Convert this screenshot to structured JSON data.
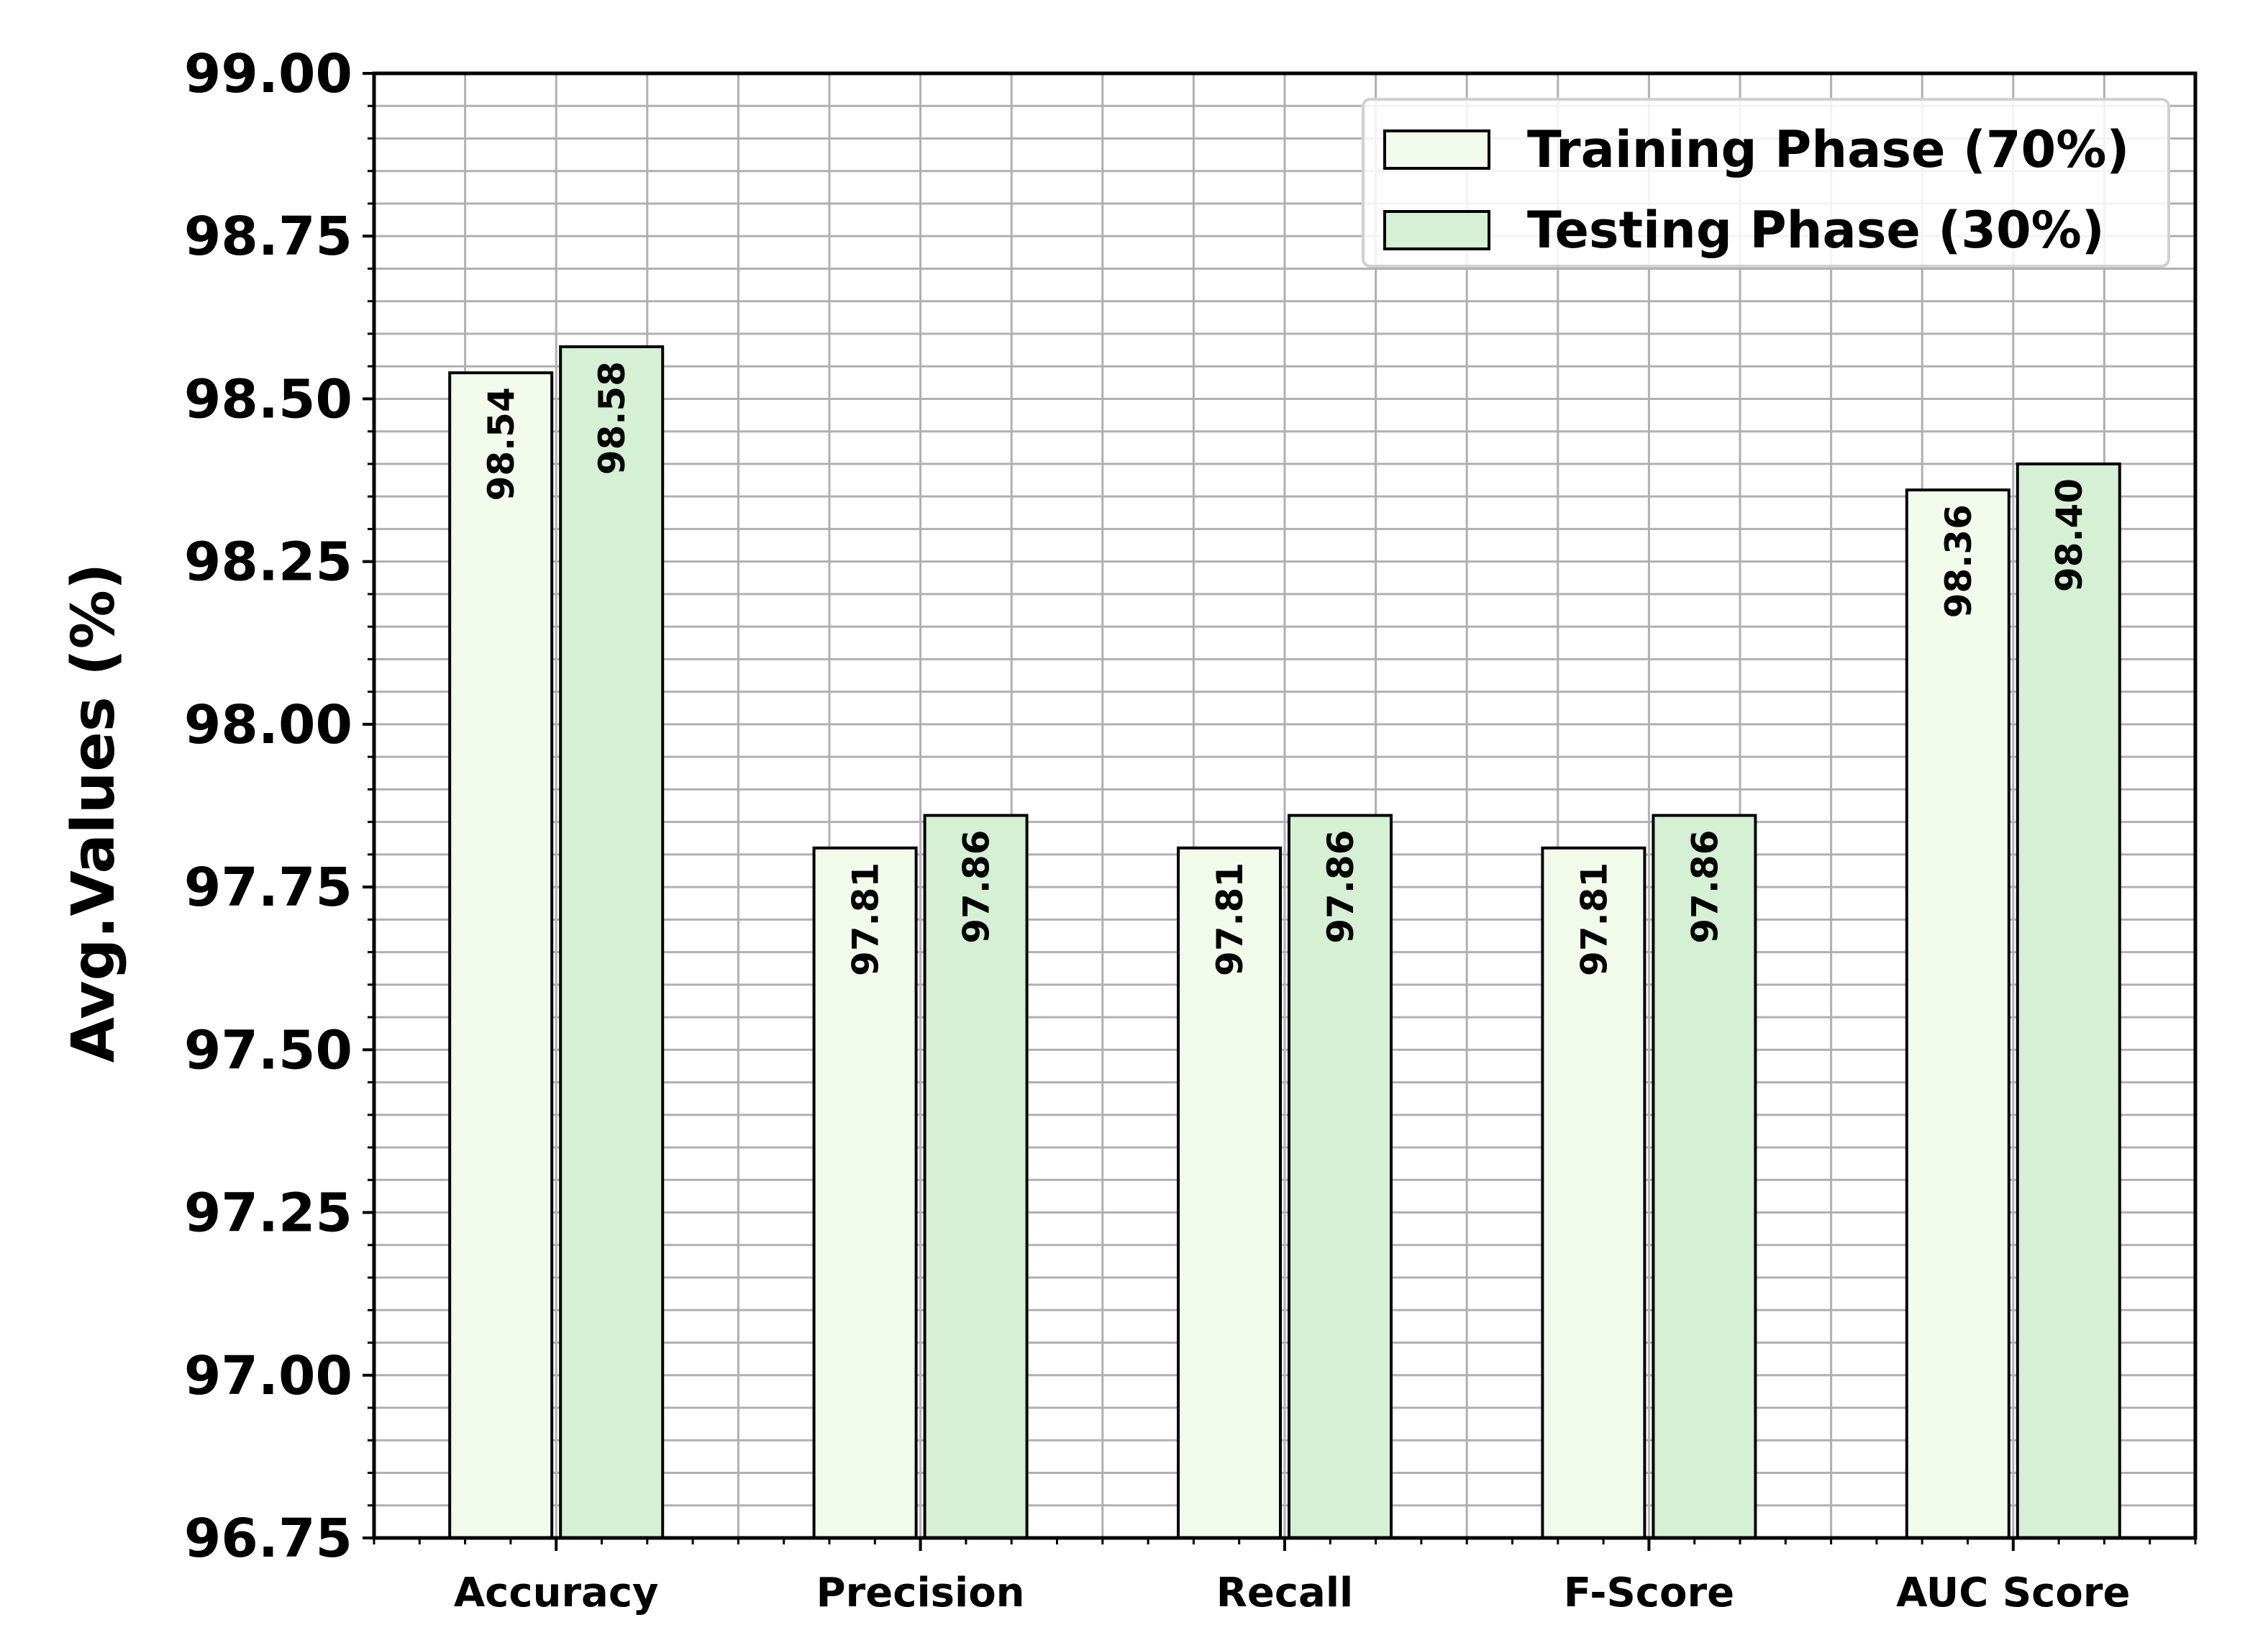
{
  "chart_data": {
    "type": "bar",
    "title": "",
    "xlabel": "",
    "ylabel": "Avg.Values (%)",
    "categories": [
      "Accuracy",
      "Precision",
      "Recall",
      "F-Score",
      "AUC Score"
    ],
    "series": [
      {
        "name": "Training Phase (70%)",
        "values": [
          98.54,
          97.81,
          97.81,
          97.81,
          98.36
        ],
        "labels": [
          "98.54",
          "97.81",
          "97.81",
          "97.81",
          "98.36"
        ],
        "color": "#f2faec"
      },
      {
        "name": "Testing Phase (30%)",
        "values": [
          98.58,
          97.86,
          97.86,
          97.86,
          98.4
        ],
        "labels": [
          "98.58",
          "97.86",
          "97.86",
          "97.86",
          "98.40"
        ],
        "color": "#d5f0d5"
      }
    ],
    "ylim": [
      96.75,
      99.0
    ],
    "yticks": [
      "96.75",
      "97.00",
      "97.25",
      "97.50",
      "97.75",
      "98.00",
      "98.25",
      "98.50",
      "98.75",
      "99.00"
    ],
    "grid": true,
    "legend_position": "top-right",
    "colors": {
      "grid": "#b0b0b0",
      "edge": "#000000"
    }
  }
}
